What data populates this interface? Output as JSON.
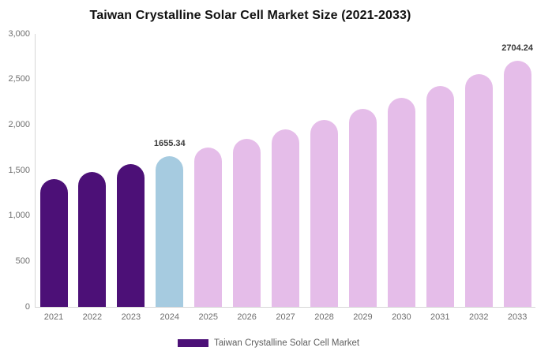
{
  "title": "Taiwan Crystalline Solar Cell Market Size (2021-2033)",
  "chart_data": {
    "type": "bar",
    "title": "Taiwan Crystalline Solar Cell Market Size (2021-2033)",
    "categories": [
      "2021",
      "2022",
      "2023",
      "2024",
      "2025",
      "2026",
      "2027",
      "2028",
      "2029",
      "2030",
      "2031",
      "2032",
      "2033"
    ],
    "values": [
      1405,
      1484,
      1567,
      1655.34,
      1748,
      1846,
      1950,
      2059,
      2175,
      2297,
      2426,
      2562,
      2704.24
    ],
    "point_color_keys": [
      "historical",
      "historical",
      "historical",
      "current",
      "forecast",
      "forecast",
      "forecast",
      "forecast",
      "forecast",
      "forecast",
      "forecast",
      "forecast",
      "forecast"
    ],
    "data_labels": {
      "2024": "1655.34",
      "2033": "2704.24"
    },
    "xlabel": "",
    "ylabel": "",
    "ylim": [
      0,
      3000
    ],
    "yticks": [
      0,
      500,
      1000,
      1500,
      2000,
      2500,
      3000
    ],
    "ytick_labels": [
      "0",
      "500",
      "1,000",
      "1,500",
      "2,000",
      "2,500",
      "3,000"
    ],
    "grid": false,
    "legend_position": "bottom"
  },
  "colors": {
    "historical": "#4C1077",
    "current": "#A6CBE0",
    "forecast": "#E5BDE9",
    "axis_line": "#D6D6D6",
    "tick_text": "#6E6E6E",
    "data_label_text": "#3B3B3B",
    "legend_swatch": "#4C1077"
  },
  "legend": {
    "label": "Taiwan Crystalline Solar Cell Market"
  }
}
